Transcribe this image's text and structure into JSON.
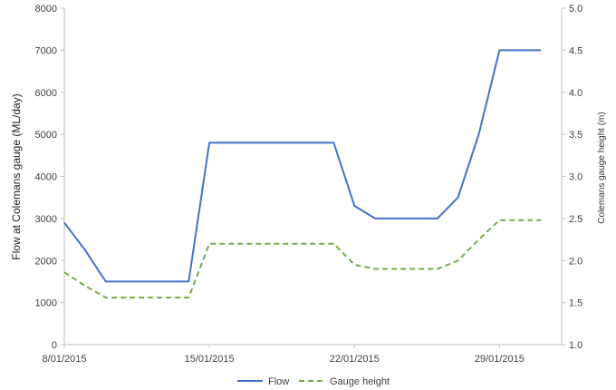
{
  "chart_data": {
    "type": "line",
    "x": [
      "2015-01-08",
      "2015-01-09",
      "2015-01-10",
      "2015-01-11",
      "2015-01-12",
      "2015-01-13",
      "2015-01-14",
      "2015-01-15",
      "2015-01-16",
      "2015-01-17",
      "2015-01-18",
      "2015-01-19",
      "2015-01-20",
      "2015-01-21",
      "2015-01-22",
      "2015-01-23",
      "2015-01-24",
      "2015-01-25",
      "2015-01-26",
      "2015-01-27",
      "2015-01-28",
      "2015-01-29",
      "2015-01-30",
      "2015-01-31"
    ],
    "x_tick_labels": [
      "8/01/2015",
      "15/01/2015",
      "22/01/2015",
      "29/01/2015"
    ],
    "xlim": [
      "2015-01-08",
      "2015-02-01"
    ],
    "series": [
      {
        "name": "Flow",
        "axis": "left",
        "color": "#4472C4",
        "style": "solid",
        "values": [
          2900,
          2250,
          1500,
          1500,
          1500,
          1500,
          1500,
          4800,
          4800,
          4800,
          4800,
          4800,
          4800,
          4800,
          3300,
          3000,
          3000,
          3000,
          3000,
          3500,
          5000,
          7000,
          7000,
          7000
        ]
      },
      {
        "name": "Gauge height",
        "axis": "right",
        "color": "#70AD47",
        "style": "dashed",
        "values": [
          1.86,
          1.7,
          1.56,
          1.56,
          1.56,
          1.56,
          1.56,
          2.2,
          2.2,
          2.2,
          2.2,
          2.2,
          2.2,
          2.2,
          1.95,
          1.9,
          1.9,
          1.9,
          1.9,
          2.0,
          2.25,
          2.48,
          2.48,
          2.48
        ]
      }
    ],
    "ylabel": "Flow at Colemans gauge (ML/day)",
    "ylim": [
      0,
      8000
    ],
    "y_ticks": [
      0,
      1000,
      2000,
      3000,
      4000,
      5000,
      6000,
      7000,
      8000
    ],
    "y2label": "Colemans gauge height (m)",
    "y2lim": [
      1.0,
      5.0
    ],
    "y2_ticks": [
      "1.0",
      "1.5",
      "2.0",
      "2.5",
      "3.0",
      "3.5",
      "4.0",
      "4.5",
      "5.0"
    ],
    "grid": false,
    "legend_position": "bottom-center"
  },
  "legend": {
    "flow_label": "Flow",
    "gauge_label": "Gauge height"
  }
}
